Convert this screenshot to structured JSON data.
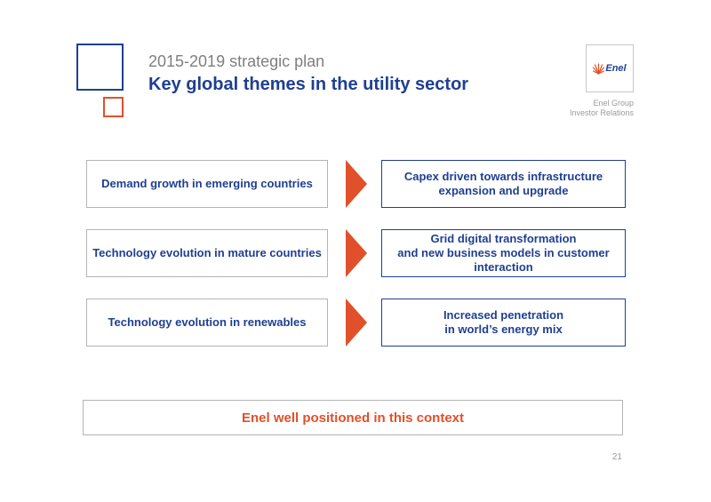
{
  "header": {
    "subtitle": "2015-2019 strategic plan",
    "title": "Key global themes in the utility sector"
  },
  "logo": {
    "text": "Enel",
    "icon": "enel-sunburst-icon"
  },
  "corporate": {
    "line1": "Enel Group",
    "line2": "Investor Relations"
  },
  "themes": [
    {
      "driver": "Demand growth in emerging countries",
      "outcome_lines": [
        "Capex driven towards infrastructure",
        "expansion and upgrade"
      ]
    },
    {
      "driver": "Technology evolution in mature countries",
      "outcome_lines": [
        "Grid digital transformation",
        "and new business models in customer",
        "interaction"
      ]
    },
    {
      "driver": "Technology evolution in renewables",
      "outcome_lines": [
        "Increased penetration",
        "in world’s energy mix"
      ]
    }
  ],
  "conclusion": "Enel well positioned in this context",
  "page_number": "21",
  "colors": {
    "brand_blue": "#1f3f91",
    "accent_orange": "#e0502a",
    "muted_gray": "#7f7f7f"
  }
}
